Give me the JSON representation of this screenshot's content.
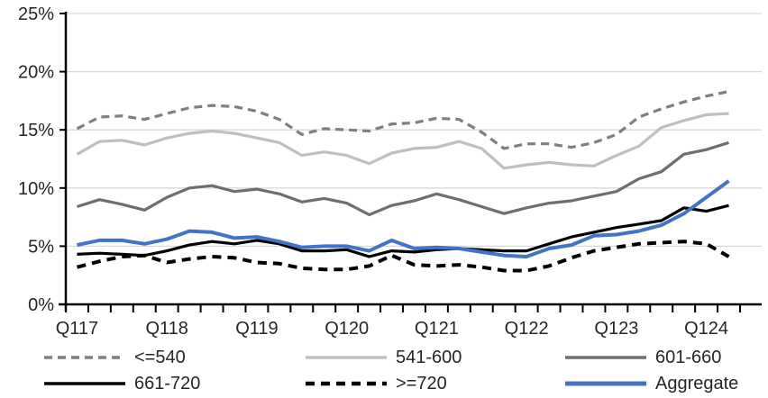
{
  "chart_data": {
    "type": "line",
    "title": "",
    "xlabel": "",
    "ylabel": "",
    "grid": true,
    "legend_position": "bottom",
    "ylim": [
      0,
      25
    ],
    "y_tick_values": [
      0,
      5,
      10,
      15,
      20,
      25
    ],
    "y_tick_labels": [
      "0%",
      "5%",
      "10%",
      "15%",
      "20%",
      "25%"
    ],
    "categories": [
      "Q1'17",
      "Q2'17",
      "Q3'17",
      "Q4'17",
      "Q1'18",
      "Q2'18",
      "Q3'18",
      "Q4'18",
      "Q1'19",
      "Q2'19",
      "Q3'19",
      "Q4'19",
      "Q1'20",
      "Q2'20",
      "Q3'20",
      "Q4'20",
      "Q1'21",
      "Q2'21",
      "Q3'21",
      "Q4'21",
      "Q1'22",
      "Q2'22",
      "Q3'22",
      "Q4'22",
      "Q1'23",
      "Q2'23",
      "Q3'23",
      "Q4'23",
      "Q1'24",
      "Q2'24"
    ],
    "x_axis_label_positions": [
      0,
      4,
      8,
      12,
      16,
      20,
      24,
      28
    ],
    "x_axis_labels": [
      "Q117",
      "Q118",
      "Q119",
      "Q120",
      "Q121",
      "Q122",
      "Q123",
      "Q124"
    ],
    "series": [
      {
        "name": "<=540",
        "color": "#7F7F7F",
        "dashed": true,
        "values": [
          15.1,
          16.1,
          16.2,
          15.9,
          16.4,
          16.9,
          17.1,
          17.0,
          16.6,
          15.9,
          14.6,
          15.1,
          15.0,
          14.9,
          15.5,
          15.6,
          16.0,
          15.9,
          14.8,
          13.4,
          13.8,
          13.8,
          13.5,
          13.9,
          14.6,
          16.1,
          16.8,
          17.4,
          17.9,
          18.3
        ]
      },
      {
        "name": "541-600",
        "color": "#BFBFBF",
        "dashed": false,
        "values": [
          12.9,
          14.0,
          14.1,
          13.7,
          14.3,
          14.7,
          14.9,
          14.7,
          14.3,
          13.9,
          12.8,
          13.1,
          12.8,
          12.1,
          13.0,
          13.4,
          13.5,
          14.0,
          13.4,
          11.7,
          12.0,
          12.2,
          12.0,
          11.9,
          12.8,
          13.6,
          15.2,
          15.8,
          16.3,
          16.4
        ]
      },
      {
        "name": "601-660",
        "color": "#6E6E6E",
        "dashed": false,
        "values": [
          8.4,
          9.0,
          8.6,
          8.1,
          9.2,
          10.0,
          10.2,
          9.7,
          9.9,
          9.5,
          8.8,
          9.1,
          8.7,
          7.7,
          8.5,
          8.9,
          9.5,
          9.0,
          8.4,
          7.8,
          8.3,
          8.7,
          8.9,
          9.3,
          9.7,
          10.8,
          11.4,
          12.9,
          13.3,
          13.9
        ]
      },
      {
        "name": "661-720",
        "color": "#000000",
        "dashed": false,
        "values": [
          4.3,
          4.4,
          4.3,
          4.2,
          4.6,
          5.1,
          5.4,
          5.2,
          5.5,
          5.2,
          4.6,
          4.6,
          4.7,
          4.1,
          4.6,
          4.5,
          4.7,
          4.8,
          4.7,
          4.6,
          4.6,
          5.2,
          5.8,
          6.2,
          6.6,
          6.9,
          7.2,
          8.3,
          8.0,
          8.5
        ]
      },
      {
        "name": ">=720",
        "color": "#000000",
        "dashed": true,
        "values": [
          3.2,
          3.7,
          4.1,
          4.2,
          3.6,
          3.9,
          4.1,
          4.0,
          3.6,
          3.5,
          3.1,
          3.0,
          3.0,
          3.3,
          4.2,
          3.4,
          3.3,
          3.4,
          3.2,
          2.9,
          2.9,
          3.3,
          4.0,
          4.6,
          4.9,
          5.2,
          5.3,
          5.4,
          5.2,
          4.1
        ]
      },
      {
        "name": "Aggregate",
        "color": "#4472C4",
        "dashed": false,
        "values": [
          5.1,
          5.5,
          5.5,
          5.2,
          5.6,
          6.3,
          6.2,
          5.7,
          5.8,
          5.4,
          4.9,
          5.0,
          5.0,
          4.6,
          5.5,
          4.8,
          4.9,
          4.8,
          4.5,
          4.2,
          4.1,
          4.8,
          5.1,
          5.9,
          6.0,
          6.3,
          6.8,
          7.8,
          9.2,
          10.6
        ]
      }
    ],
    "colors": {
      "gridline": "#D9D9D9",
      "axis": "#000000",
      "text": "#262626",
      "accent_blue": "#4472C4"
    }
  }
}
